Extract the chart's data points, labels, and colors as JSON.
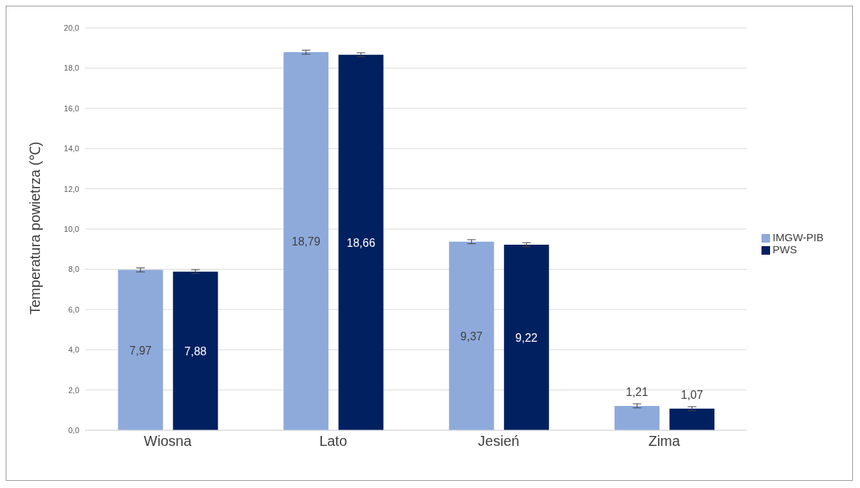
{
  "chart_data": {
    "type": "bar",
    "ylabel": "Temperatura powietrza (℃)",
    "categories": [
      "Wiosna",
      "Lato",
      "Jesień",
      "Zima"
    ],
    "series": [
      {
        "name": "IMGW-PIB",
        "color": "#8eaadb",
        "values": [
          7.97,
          18.79,
          9.37,
          1.21
        ],
        "value_labels": [
          "7,97",
          "18,79",
          "9,37",
          "1,21"
        ],
        "errors": [
          0.1,
          0.1,
          0.1,
          0.1
        ]
      },
      {
        "name": "PWS",
        "color": "#002060",
        "values": [
          7.88,
          18.66,
          9.22,
          1.07
        ],
        "value_labels": [
          "7,88",
          "18,66",
          "9,22",
          "1,07"
        ],
        "errors": [
          0.1,
          0.1,
          0.1,
          0.1
        ]
      }
    ],
    "ylim": [
      0,
      20
    ],
    "yticks": [
      {
        "value": 0,
        "label": "0,0"
      },
      {
        "value": 2,
        "label": "2,0"
      },
      {
        "value": 4,
        "label": "4,0"
      },
      {
        "value": 6,
        "label": "6,0"
      },
      {
        "value": 8,
        "label": "8,0"
      },
      {
        "value": 10,
        "label": "10,0"
      },
      {
        "value": 12,
        "label": "12,0"
      },
      {
        "value": 14,
        "label": "14,0"
      },
      {
        "value": 16,
        "label": "16,0"
      },
      {
        "value": 18,
        "label": "18,0"
      },
      {
        "value": 20,
        "label": "20,0"
      }
    ],
    "grid": "y",
    "legend": "right"
  }
}
